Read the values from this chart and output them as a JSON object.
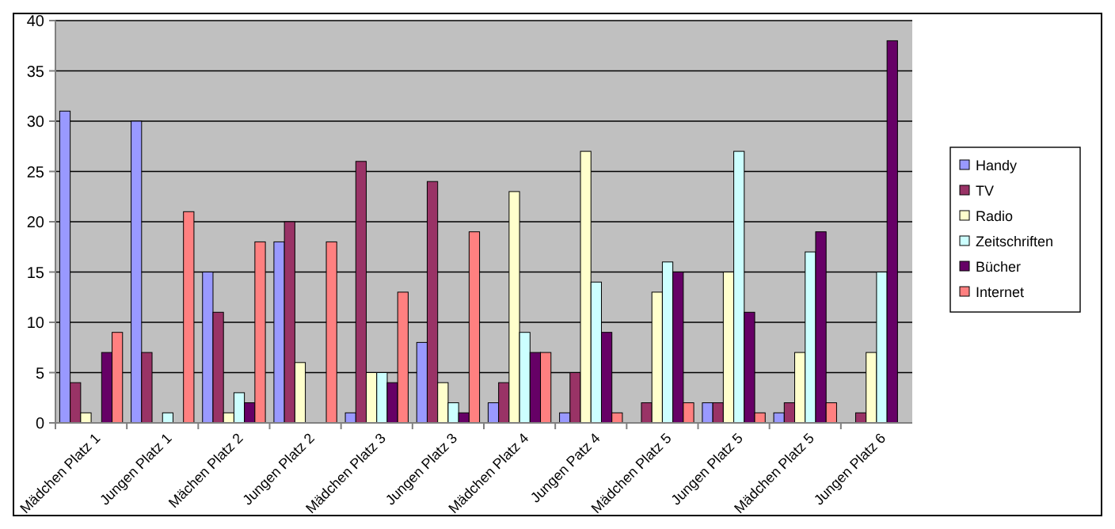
{
  "chart_data": {
    "type": "bar",
    "categories": [
      "Mädchen Platz 1",
      "Jungen Platz 1",
      "Mächen Platz 2",
      "Jungen Platz 2",
      "Mädchen Platz 3",
      "Jungen Platz 3",
      "Mädchen Platz 4",
      "Jungen Patz 4",
      "Mädchen Platz 5",
      "Jungen Platz 5",
      "Mädchen Platz 5",
      "Jungen Platz 6"
    ],
    "series": [
      {
        "name": "Handy",
        "color": "#9999ff",
        "values": [
          31,
          30,
          15,
          18,
          1,
          8,
          2,
          1,
          0,
          2,
          1,
          0
        ]
      },
      {
        "name": "TV",
        "color": "#993366",
        "values": [
          4,
          7,
          11,
          20,
          26,
          24,
          4,
          5,
          2,
          2,
          2,
          1
        ]
      },
      {
        "name": "Radio",
        "color": "#ffffcc",
        "values": [
          1,
          0,
          1,
          6,
          5,
          4,
          23,
          27,
          13,
          15,
          7,
          7
        ]
      },
      {
        "name": "Zeitschriften",
        "color": "#ccffff",
        "values": [
          0,
          1,
          3,
          0,
          5,
          2,
          9,
          14,
          16,
          27,
          17,
          15
        ]
      },
      {
        "name": "Bücher",
        "color": "#660066",
        "values": [
          7,
          0,
          2,
          0,
          4,
          1,
          7,
          9,
          15,
          11,
          19,
          38
        ]
      },
      {
        "name": "Internet",
        "color": "#ff8080",
        "values": [
          9,
          21,
          18,
          18,
          13,
          19,
          7,
          1,
          2,
          1,
          2,
          0
        ]
      }
    ],
    "ylim": [
      0,
      40
    ],
    "yticks": [
      0,
      5,
      10,
      15,
      20,
      25,
      30,
      35,
      40
    ],
    "grid": "y",
    "legend": "right"
  }
}
